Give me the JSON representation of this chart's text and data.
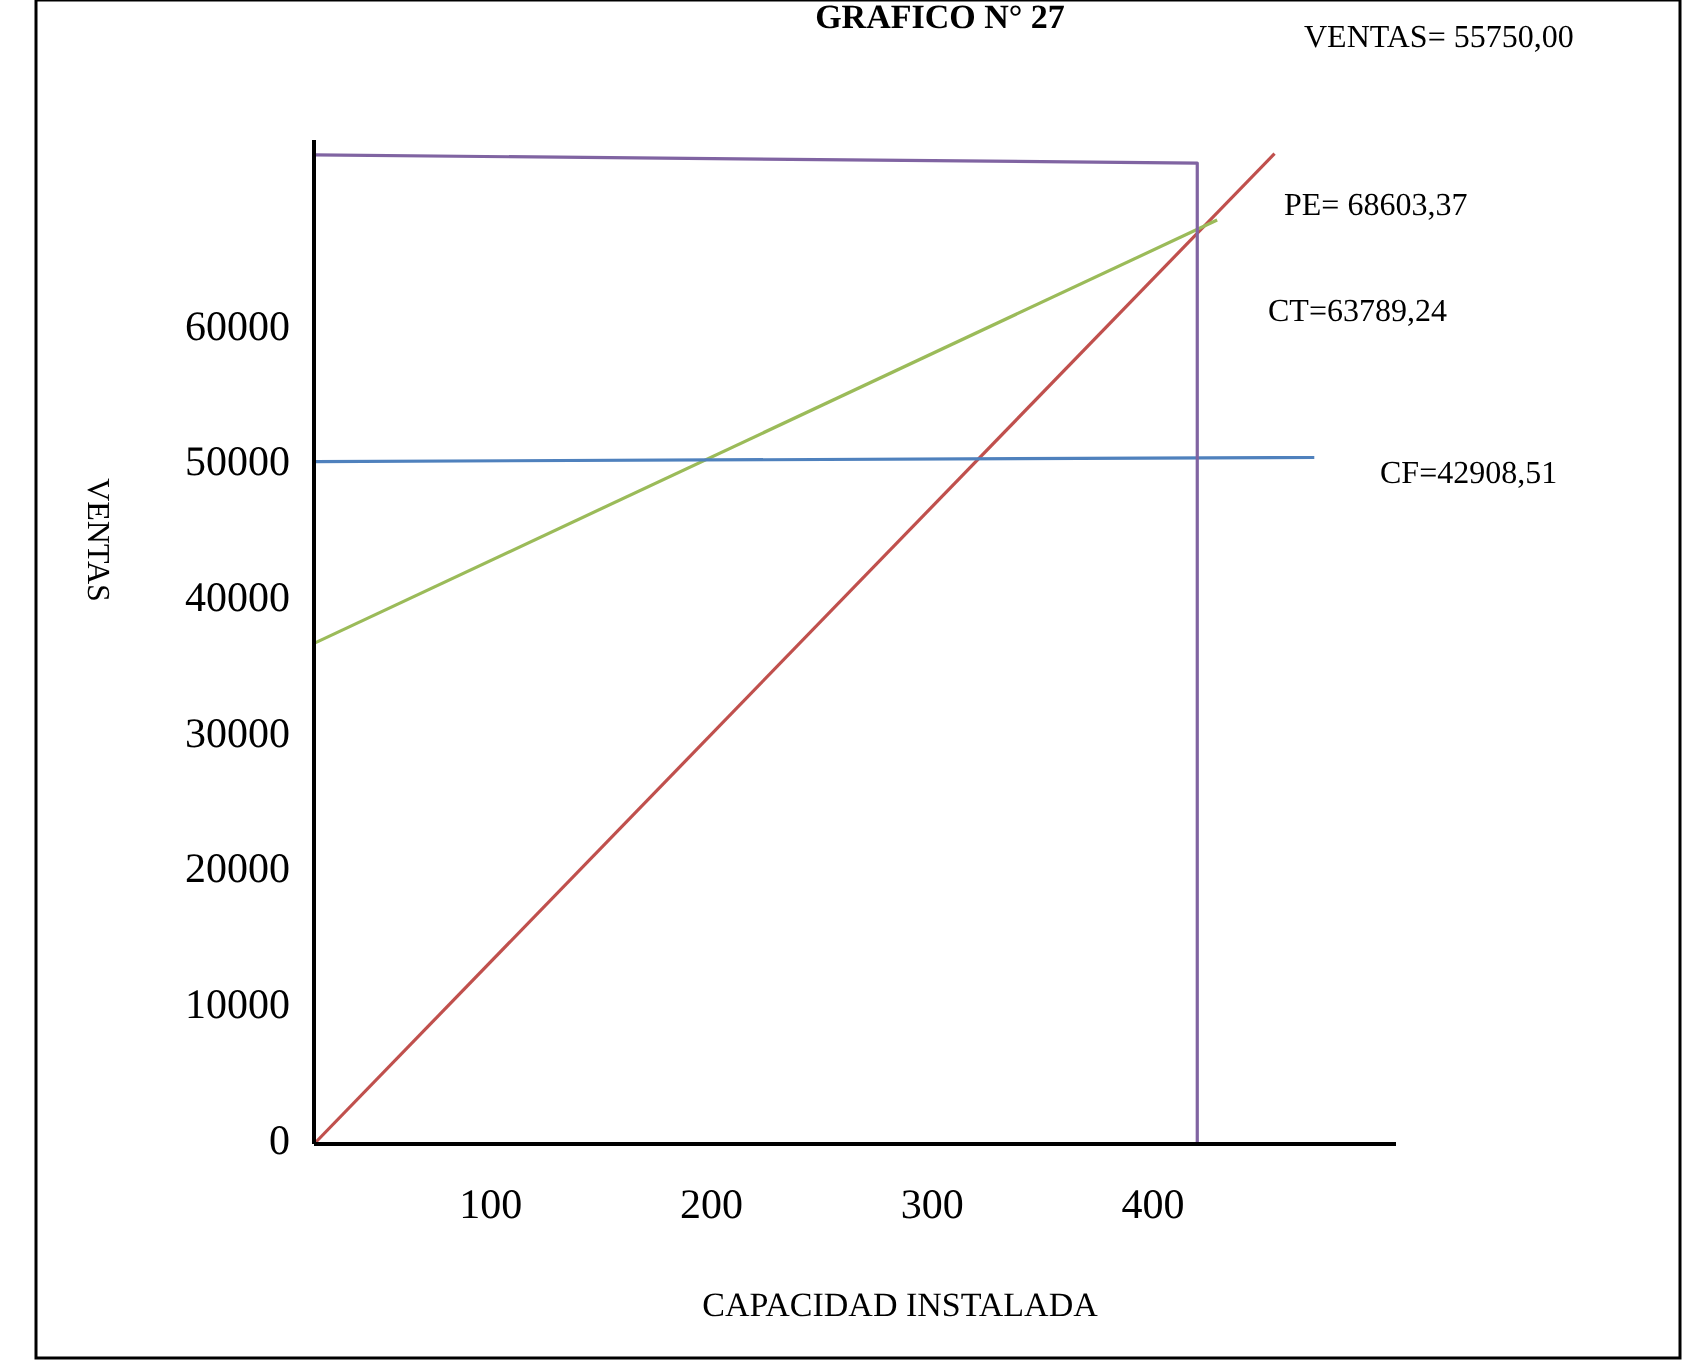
{
  "chart_data": {
    "type": "line",
    "title": "GRAFICO N° 27",
    "xlabel": "CAPACIDAD INSTALADA",
    "ylabel": "VENTAS",
    "xlim": [
      20,
      510
    ],
    "ylim": [
      0,
      74000
    ],
    "xticks": [
      100,
      200,
      300,
      400
    ],
    "yticks": [
      0,
      10000,
      20000,
      30000,
      40000,
      50000,
      60000
    ],
    "grid": false,
    "line_style": "solid",
    "series": [
      {
        "color": "#c0504d",
        "x": [
          20,
          455
        ],
        "values": [
          0,
          73000
        ]
      },
      {
        "color": "#9bbb59",
        "x": [
          20,
          429
        ],
        "values": [
          36900,
          68100
        ]
      },
      {
        "color": "#4f81bd",
        "x": [
          20,
          473
        ],
        "values": [
          50300,
          50600
        ]
      },
      {
        "color": "#8064a2",
        "x": [
          20,
          420,
          420
        ],
        "values": [
          72900,
          72300,
          0
        ]
      }
    ],
    "annotations": [
      "VENTAS= 55750,00",
      "PE= 68603,37",
      "CT=63789,24",
      "CF=42908,51"
    ]
  }
}
